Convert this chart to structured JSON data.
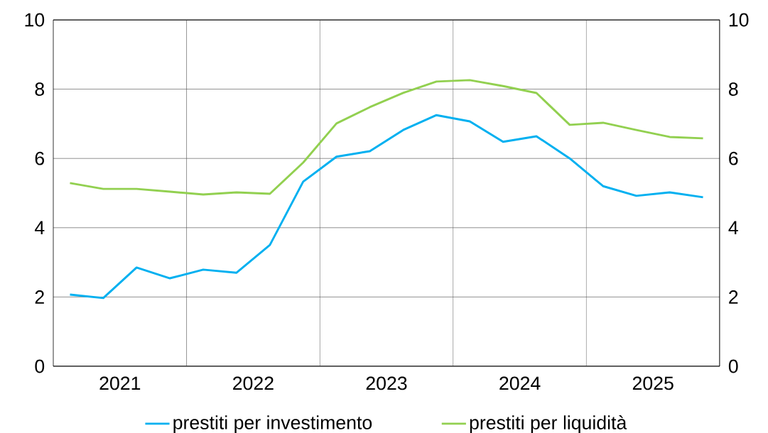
{
  "chart_data": {
    "type": "line",
    "x": [
      2021.125,
      2021.375,
      2021.625,
      2021.875,
      2022.125,
      2022.375,
      2022.625,
      2022.875,
      2023.125,
      2023.375,
      2023.625,
      2023.875,
      2024.125,
      2024.375,
      2024.625,
      2024.875,
      2025.125,
      2025.375,
      2025.625,
      2025.875
    ],
    "series": [
      {
        "name": "prestiti per investimento",
        "color": "#00b0f0",
        "values": [
          2.07,
          1.97,
          2.85,
          2.54,
          2.79,
          2.7,
          3.5,
          5.33,
          6.05,
          6.21,
          6.82,
          7.25,
          7.07,
          6.48,
          6.64,
          6.0,
          5.2,
          4.92,
          5.02,
          4.88
        ]
      },
      {
        "name": "prestiti per liquidità",
        "color": "#92d050",
        "values": [
          5.29,
          5.12,
          5.12,
          5.04,
          4.96,
          5.02,
          4.98,
          5.88,
          7.01,
          7.48,
          7.89,
          8.22,
          8.26,
          8.09,
          7.89,
          6.97,
          7.03,
          6.82,
          6.62,
          6.58
        ]
      }
    ],
    "xlim": [
      2021,
      2026
    ],
    "xticks": [
      {
        "value": 2021.5,
        "label": "2021"
      },
      {
        "value": 2022,
        "label": null
      },
      {
        "value": 2022.5,
        "label": "2022"
      },
      {
        "value": 2023,
        "label": null
      },
      {
        "value": 2023.5,
        "label": "2023"
      },
      {
        "value": 2024,
        "label": null
      },
      {
        "value": 2024.5,
        "label": "2024"
      },
      {
        "value": 2025,
        "label": null
      },
      {
        "value": 2025.5,
        "label": "2025"
      }
    ],
    "ylim": [
      0,
      10
    ],
    "yticks": [
      0,
      2,
      4,
      6,
      8,
      10
    ],
    "y2lim": [
      0,
      10
    ],
    "y2ticks": [
      0,
      2,
      4,
      6,
      8,
      10
    ],
    "grid": true,
    "legend": "bottom",
    "marker": "none",
    "line_style": "solid"
  }
}
